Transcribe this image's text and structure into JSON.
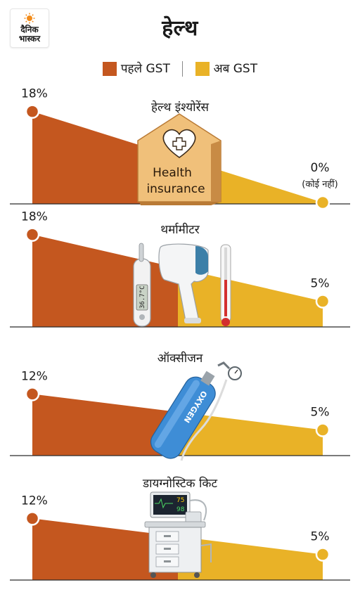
{
  "brand": {
    "line1": "दैनिक",
    "line2": "भास्कर"
  },
  "title": "हेल्थ",
  "colors": {
    "before": "#C4571F",
    "now": "#E9B227"
  },
  "legend": {
    "before_label": "पहले GST",
    "now_label": "अब GST"
  },
  "chart_data": {
    "type": "area",
    "series": [
      {
        "name": "पहले GST"
      },
      {
        "name": "अब GST"
      }
    ],
    "panels": [
      {
        "category": "हेल्थ इंश्योरेंस",
        "before": 18,
        "now": 0,
        "before_label": "18%",
        "now_label": "0%",
        "now_note": "(कोई नहीं)"
      },
      {
        "category": "थर्मामीटर",
        "before": 18,
        "now": 5,
        "before_label": "18%",
        "now_label": "5%"
      },
      {
        "category": "ऑक्सीजन",
        "before": 12,
        "now": 5,
        "before_label": "12%",
        "now_label": "5%"
      },
      {
        "category": "डायग्नोस्टिक किट",
        "before": 12,
        "now": 5,
        "before_label": "12%",
        "now_label": "5%"
      }
    ]
  },
  "illustrations": {
    "insurance_box": {
      "line1": "Health",
      "line2": "insurance"
    },
    "thermometer_reading": "36.7°C",
    "cylinder_label": "OXYGEN",
    "monitor_values": {
      "top": "75",
      "bottom": "98"
    }
  }
}
